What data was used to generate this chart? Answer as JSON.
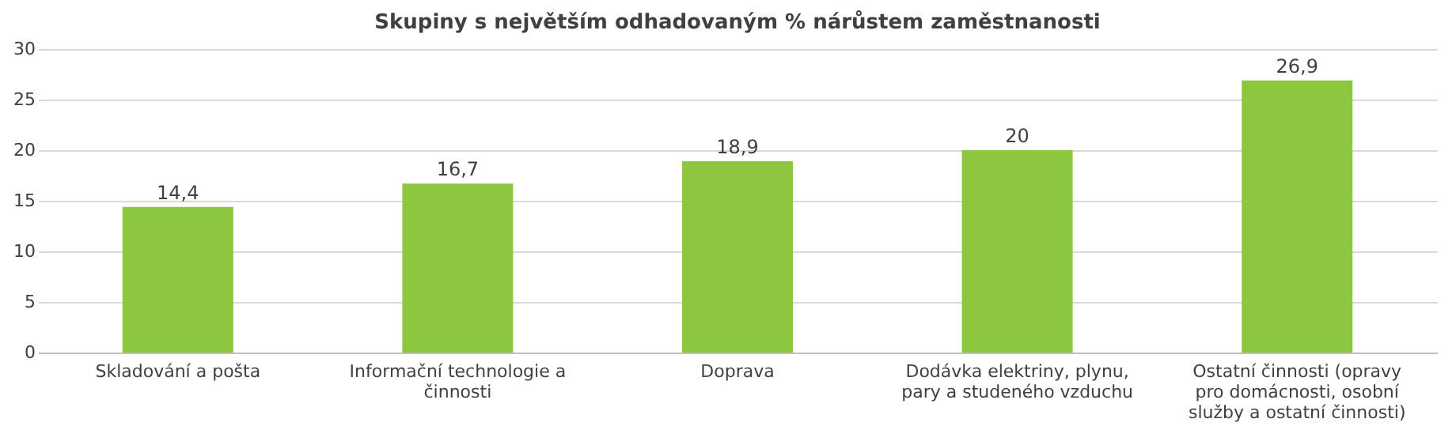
{
  "chart_data": {
    "type": "bar",
    "title": "Skupiny s největším odhadovaným % nárůstem zaměstnanosti",
    "categories": [
      "Skladování a pošta",
      "Informační technologie a činnosti",
      "Doprava",
      "Dodávka elektriny, plynu, pary a studeného vzduchu",
      "Ostatní činnosti (opravy pro domácnosti, osobní služby a ostatní činnosti)"
    ],
    "values": [
      14.4,
      16.7,
      18.9,
      20,
      26.9
    ],
    "value_labels": [
      "14,4",
      "16,7",
      "18,9",
      "20",
      "26,9"
    ],
    "color": "#8dc63f",
    "ylim": [
      0,
      30
    ],
    "yticks": [
      0,
      5,
      10,
      15,
      20,
      25,
      30
    ],
    "grid": "y"
  }
}
